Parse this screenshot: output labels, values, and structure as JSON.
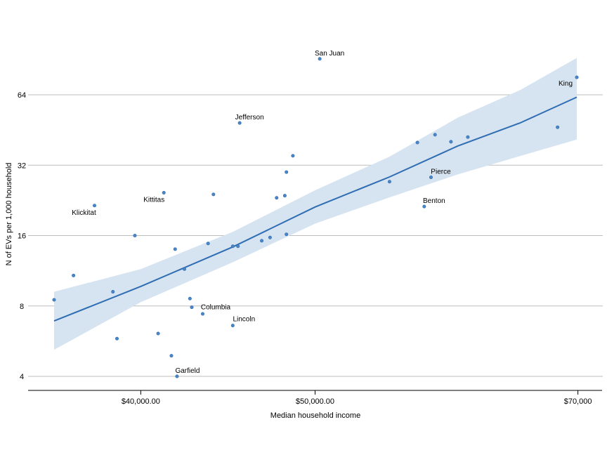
{
  "chart_data": {
    "type": "scatter",
    "xlabel": "Median household income",
    "ylabel": "N of EVs per 1,000 household",
    "xscale": "log",
    "yscale": "log2",
    "xlim": [
      35700,
      70000
    ],
    "ylim": [
      3.75,
      98
    ],
    "grid": "horizontal",
    "colors": {
      "points": "#4a86c5",
      "trend": "#2f6db3",
      "band": "#d6e3f0",
      "grid": "#bdbdbd",
      "axis": "#000000"
    },
    "x_ticks": [
      {
        "value": 40000,
        "label": "$40,000.00"
      },
      {
        "value": 50000,
        "label": "$50,000.00"
      },
      {
        "value": 70000,
        "label": "$70,000"
      }
    ],
    "y_ticks": [
      {
        "value": 4,
        "label": "4"
      },
      {
        "value": 8,
        "label": "8"
      },
      {
        "value": 16,
        "label": "16"
      },
      {
        "value": 32,
        "label": "32"
      },
      {
        "value": 64,
        "label": "64"
      }
    ],
    "points": [
      {
        "x": 35800,
        "y": 8.5,
        "label": ""
      },
      {
        "x": 36700,
        "y": 10.8,
        "label": ""
      },
      {
        "x": 37700,
        "y": 21.5,
        "label": "Klickitat"
      },
      {
        "x": 38600,
        "y": 9.2,
        "label": ""
      },
      {
        "x": 38800,
        "y": 5.8,
        "label": ""
      },
      {
        "x": 39700,
        "y": 16.0,
        "label": ""
      },
      {
        "x": 40900,
        "y": 6.1,
        "label": ""
      },
      {
        "x": 41200,
        "y": 24.4,
        "label": "Kittitas"
      },
      {
        "x": 41600,
        "y": 4.9,
        "label": ""
      },
      {
        "x": 41800,
        "y": 14.0,
        "label": ""
      },
      {
        "x": 41900,
        "y": 4.0,
        "label": "Garfield"
      },
      {
        "x": 42300,
        "y": 11.5,
        "label": ""
      },
      {
        "x": 42600,
        "y": 8.6,
        "label": ""
      },
      {
        "x": 42700,
        "y": 7.9,
        "label": "Columbia"
      },
      {
        "x": 43300,
        "y": 7.4,
        "label": ""
      },
      {
        "x": 43600,
        "y": 14.8,
        "label": ""
      },
      {
        "x": 43900,
        "y": 24.0,
        "label": ""
      },
      {
        "x": 45000,
        "y": 14.4,
        "label": ""
      },
      {
        "x": 45000,
        "y": 6.6,
        "label": "Lincoln"
      },
      {
        "x": 45300,
        "y": 14.4,
        "label": ""
      },
      {
        "x": 45400,
        "y": 48.5,
        "label": "Jefferson"
      },
      {
        "x": 46700,
        "y": 15.2,
        "label": ""
      },
      {
        "x": 47200,
        "y": 15.7,
        "label": ""
      },
      {
        "x": 47600,
        "y": 23.2,
        "label": ""
      },
      {
        "x": 48100,
        "y": 23.7,
        "label": ""
      },
      {
        "x": 48200,
        "y": 16.2,
        "label": ""
      },
      {
        "x": 48200,
        "y": 29.9,
        "label": ""
      },
      {
        "x": 48600,
        "y": 35.1,
        "label": ""
      },
      {
        "x": 50300,
        "y": 91.2,
        "label": "San Juan"
      },
      {
        "x": 55000,
        "y": 27.2,
        "label": ""
      },
      {
        "x": 57000,
        "y": 40.0,
        "label": ""
      },
      {
        "x": 57500,
        "y": 21.3,
        "label": "Benton"
      },
      {
        "x": 58000,
        "y": 28.4,
        "label": "Pierce"
      },
      {
        "x": 58300,
        "y": 43.2,
        "label": ""
      },
      {
        "x": 59500,
        "y": 40.3,
        "label": ""
      },
      {
        "x": 60800,
        "y": 42.2,
        "label": ""
      },
      {
        "x": 68200,
        "y": 46.5,
        "label": ""
      },
      {
        "x": 69900,
        "y": 76.0,
        "label": "King"
      }
    ],
    "trend": {
      "x": [
        35800,
        40000,
        45000,
        50000,
        55000,
        60000,
        65000,
        69900
      ],
      "y": [
        6.9,
        9.7,
        14.3,
        21.2,
        28.5,
        38.6,
        48.5,
        62.5
      ],
      "lower": [
        5.2,
        8.3,
        12.3,
        18.0,
        23.3,
        29.2,
        35.0,
        41.2
      ],
      "upper": [
        9.2,
        11.5,
        16.6,
        25.0,
        34.8,
        51.0,
        67.0,
        92.0
      ]
    }
  }
}
